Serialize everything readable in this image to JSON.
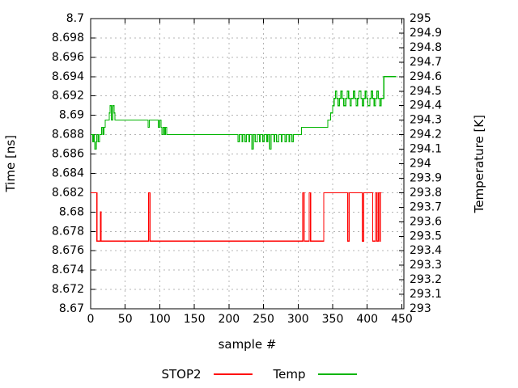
{
  "figure": {
    "background": "#ffffff",
    "text_color": "#000000",
    "grid_color": "#b4b4b4",
    "border_color": "#000000"
  },
  "axes": {
    "xlabel": "sample #",
    "ylabel_left": "Time [ns]",
    "ylabel_right": "Temperature [K]"
  },
  "legend": {
    "items": [
      {
        "label": "STOP2",
        "color": "#ff0000"
      },
      {
        "label": "Temp",
        "color": "#00b400"
      }
    ]
  },
  "chart_data": {
    "type": "line",
    "style": "steps",
    "title": "",
    "xlabel": "sample #",
    "ylabel_left": "Time [ns]",
    "ylabel_right": "Temperature [K]",
    "xlim": [
      0,
      453
    ],
    "ylim_left": [
      8.67,
      8.7
    ],
    "ylim_right": [
      293,
      295
    ],
    "grid": {
      "x_ticks": true,
      "y_left_ticks": true,
      "line_style": "dashed"
    },
    "legend_position": "bottom-center",
    "xticks": {
      "values": [
        0,
        50,
        100,
        150,
        200,
        250,
        300,
        350,
        400,
        450
      ],
      "labels": [
        "0",
        "50",
        "100",
        "150",
        "200",
        "250",
        "300",
        "350",
        "400",
        "450"
      ]
    },
    "yticks_left": {
      "values": [
        8.67,
        8.672,
        8.674,
        8.676,
        8.678,
        8.68,
        8.682,
        8.684,
        8.686,
        8.688,
        8.69,
        8.692,
        8.694,
        8.696,
        8.698,
        8.7
      ],
      "labels": [
        "8.67",
        "8.672",
        "8.674",
        "8.676",
        "8.678",
        "8.68",
        "8.682",
        "8.684",
        "8.686",
        "8.688",
        "8.69",
        "8.692",
        "8.694",
        "8.696",
        "8.698",
        "8.7"
      ]
    },
    "yticks_right": {
      "values": [
        293,
        293.1,
        293.2,
        293.3,
        293.4,
        293.5,
        293.6,
        293.7,
        293.8,
        293.9,
        294,
        294.1,
        294.2,
        294.3,
        294.4,
        294.5,
        294.6,
        294.7,
        294.8,
        294.9,
        295
      ],
      "labels": [
        "293",
        "293.1",
        "293.2",
        "293.3",
        "293.4",
        "293.5",
        "293.6",
        "293.7",
        "293.8",
        "293.9",
        "294",
        "294.1",
        "294.2",
        "294.3",
        "294.4",
        "294.5",
        "294.6",
        "294.7",
        "294.8",
        "294.9",
        "295"
      ]
    },
    "series": [
      {
        "name": "STOP2",
        "axis": "left",
        "color": "#ff0000",
        "mode": "steps",
        "end_x": 421,
        "points": [
          [
            0,
            8.682
          ],
          [
            9,
            8.677
          ],
          [
            14,
            8.68
          ],
          [
            15,
            8.677
          ],
          [
            84,
            8.682
          ],
          [
            86,
            8.677
          ],
          [
            307,
            8.682
          ],
          [
            309,
            8.677
          ],
          [
            316,
            8.682
          ],
          [
            318,
            8.677
          ],
          [
            337,
            8.682
          ],
          [
            372,
            8.677
          ],
          [
            374,
            8.682
          ],
          [
            393,
            8.677
          ],
          [
            395,
            8.682
          ],
          [
            408,
            8.677
          ],
          [
            412,
            8.682
          ],
          [
            414,
            8.677
          ],
          [
            416,
            8.682
          ],
          [
            418,
            8.677
          ],
          [
            419,
            8.682
          ]
        ]
      },
      {
        "name": "Temp",
        "axis": "right",
        "color": "#00b400",
        "mode": "steps",
        "end_x": 442,
        "points": [
          [
            0,
            294.2
          ],
          [
            3,
            294.15
          ],
          [
            4,
            294.2
          ],
          [
            5,
            294.15
          ],
          [
            6,
            294.1
          ],
          [
            8,
            294.15
          ],
          [
            9,
            294.2
          ],
          [
            11,
            294.15
          ],
          [
            13,
            294.2
          ],
          [
            16,
            294.25
          ],
          [
            18,
            294.2
          ],
          [
            19,
            294.25
          ],
          [
            21,
            294.3
          ],
          [
            27,
            294.35
          ],
          [
            28,
            294.4
          ],
          [
            30,
            294.3
          ],
          [
            32,
            294.4
          ],
          [
            34,
            294.35
          ],
          [
            35,
            294.3
          ],
          [
            83,
            294.25
          ],
          [
            85,
            294.3
          ],
          [
            98,
            294.25
          ],
          [
            100,
            294.3
          ],
          [
            102,
            294.25
          ],
          [
            103,
            294.2
          ],
          [
            105,
            294.25
          ],
          [
            107,
            294.2
          ],
          [
            108,
            294.25
          ],
          [
            110,
            294.2
          ],
          [
            213,
            294.15
          ],
          [
            215,
            294.2
          ],
          [
            219,
            294.15
          ],
          [
            220,
            294.2
          ],
          [
            223,
            294.15
          ],
          [
            225,
            294.2
          ],
          [
            229,
            294.15
          ],
          [
            230,
            294.2
          ],
          [
            233,
            294.1
          ],
          [
            235,
            294.2
          ],
          [
            238,
            294.15
          ],
          [
            241,
            294.2
          ],
          [
            244,
            294.15
          ],
          [
            245,
            294.2
          ],
          [
            249,
            294.15
          ],
          [
            251,
            294.2
          ],
          [
            255,
            294.15
          ],
          [
            256,
            294.2
          ],
          [
            259,
            294.1
          ],
          [
            261,
            294.2
          ],
          [
            265,
            294.15
          ],
          [
            266,
            294.2
          ],
          [
            269,
            294.15
          ],
          [
            272,
            294.2
          ],
          [
            276,
            294.15
          ],
          [
            277,
            294.2
          ],
          [
            281,
            294.15
          ],
          [
            283,
            294.2
          ],
          [
            287,
            294.15
          ],
          [
            288,
            294.2
          ],
          [
            291,
            294.15
          ],
          [
            293,
            294.2
          ],
          [
            305,
            294.25
          ],
          [
            343,
            294.3
          ],
          [
            347,
            294.35
          ],
          [
            350,
            294.4
          ],
          [
            352,
            294.45
          ],
          [
            354,
            294.5
          ],
          [
            356,
            294.45
          ],
          [
            358,
            294.4
          ],
          [
            360,
            294.45
          ],
          [
            362,
            294.5
          ],
          [
            364,
            294.45
          ],
          [
            366,
            294.4
          ],
          [
            369,
            294.45
          ],
          [
            371,
            294.5
          ],
          [
            373,
            294.45
          ],
          [
            375,
            294.4
          ],
          [
            377,
            294.45
          ],
          [
            380,
            294.5
          ],
          [
            382,
            294.45
          ],
          [
            384,
            294.4
          ],
          [
            386,
            294.45
          ],
          [
            388,
            294.5
          ],
          [
            391,
            294.45
          ],
          [
            393,
            294.4
          ],
          [
            395,
            294.45
          ],
          [
            397,
            294.5
          ],
          [
            399,
            294.45
          ],
          [
            401,
            294.4
          ],
          [
            404,
            294.45
          ],
          [
            406,
            294.5
          ],
          [
            408,
            294.45
          ],
          [
            410,
            294.4
          ],
          [
            412,
            294.45
          ],
          [
            414,
            294.5
          ],
          [
            416,
            294.45
          ],
          [
            418,
            294.4
          ],
          [
            420,
            294.45
          ],
          [
            424,
            294.6
          ]
        ]
      }
    ]
  }
}
